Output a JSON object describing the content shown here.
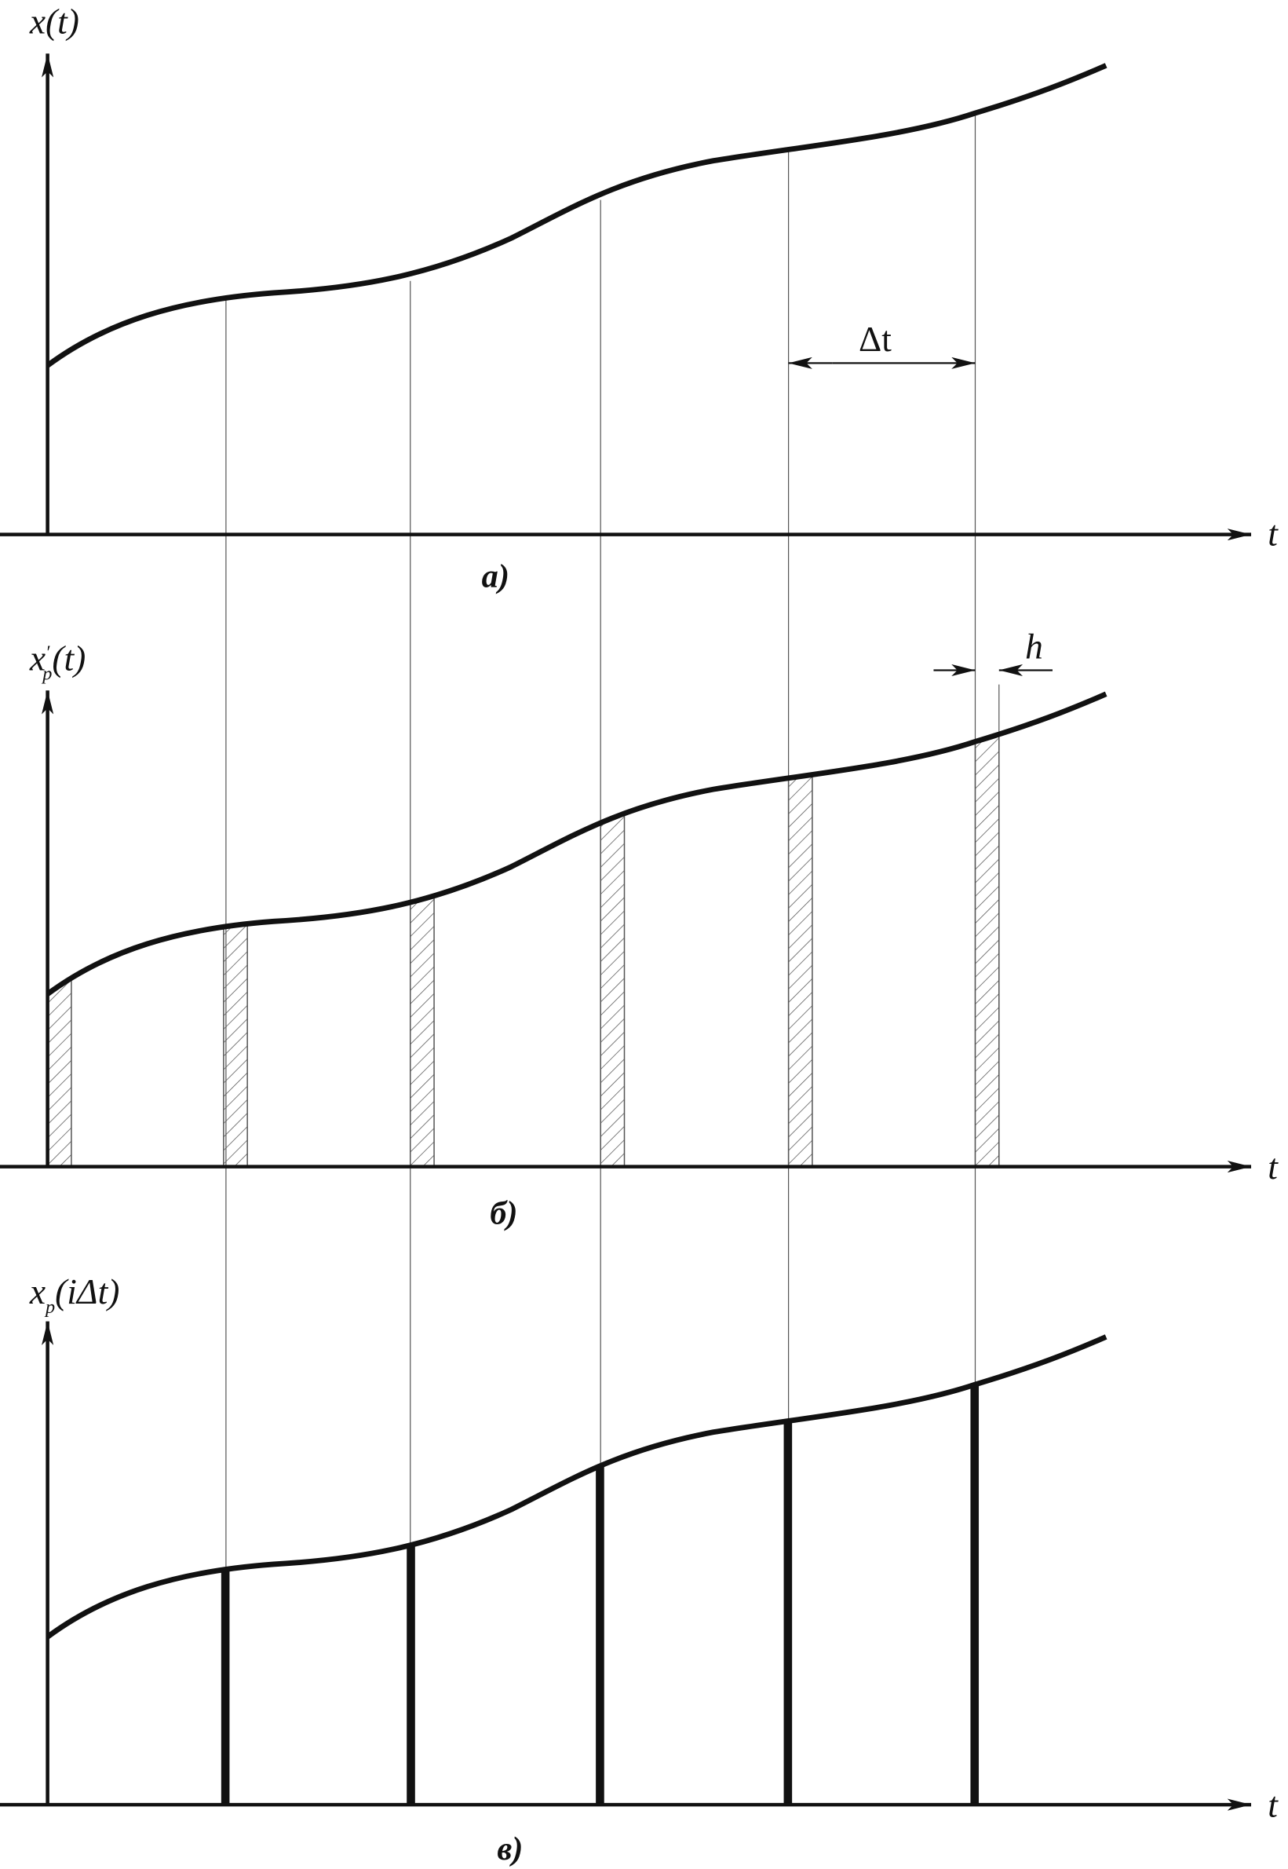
{
  "panels": [
    {
      "y_axis_label": "x(t)",
      "x_axis_label": "t",
      "caption": "а)",
      "interval_label": "Δt"
    },
    {
      "y_axis_label": {
        "base": "x",
        "prime": "′",
        "subscript": "p",
        "argument": "(t)"
      },
      "x_axis_label": "t",
      "caption": "б)",
      "width_label": "h"
    },
    {
      "y_axis_label": {
        "base": "x",
        "subscript": "p",
        "argument": "(iΔt)"
      },
      "x_axis_label": "t",
      "caption": "в)"
    }
  ]
}
